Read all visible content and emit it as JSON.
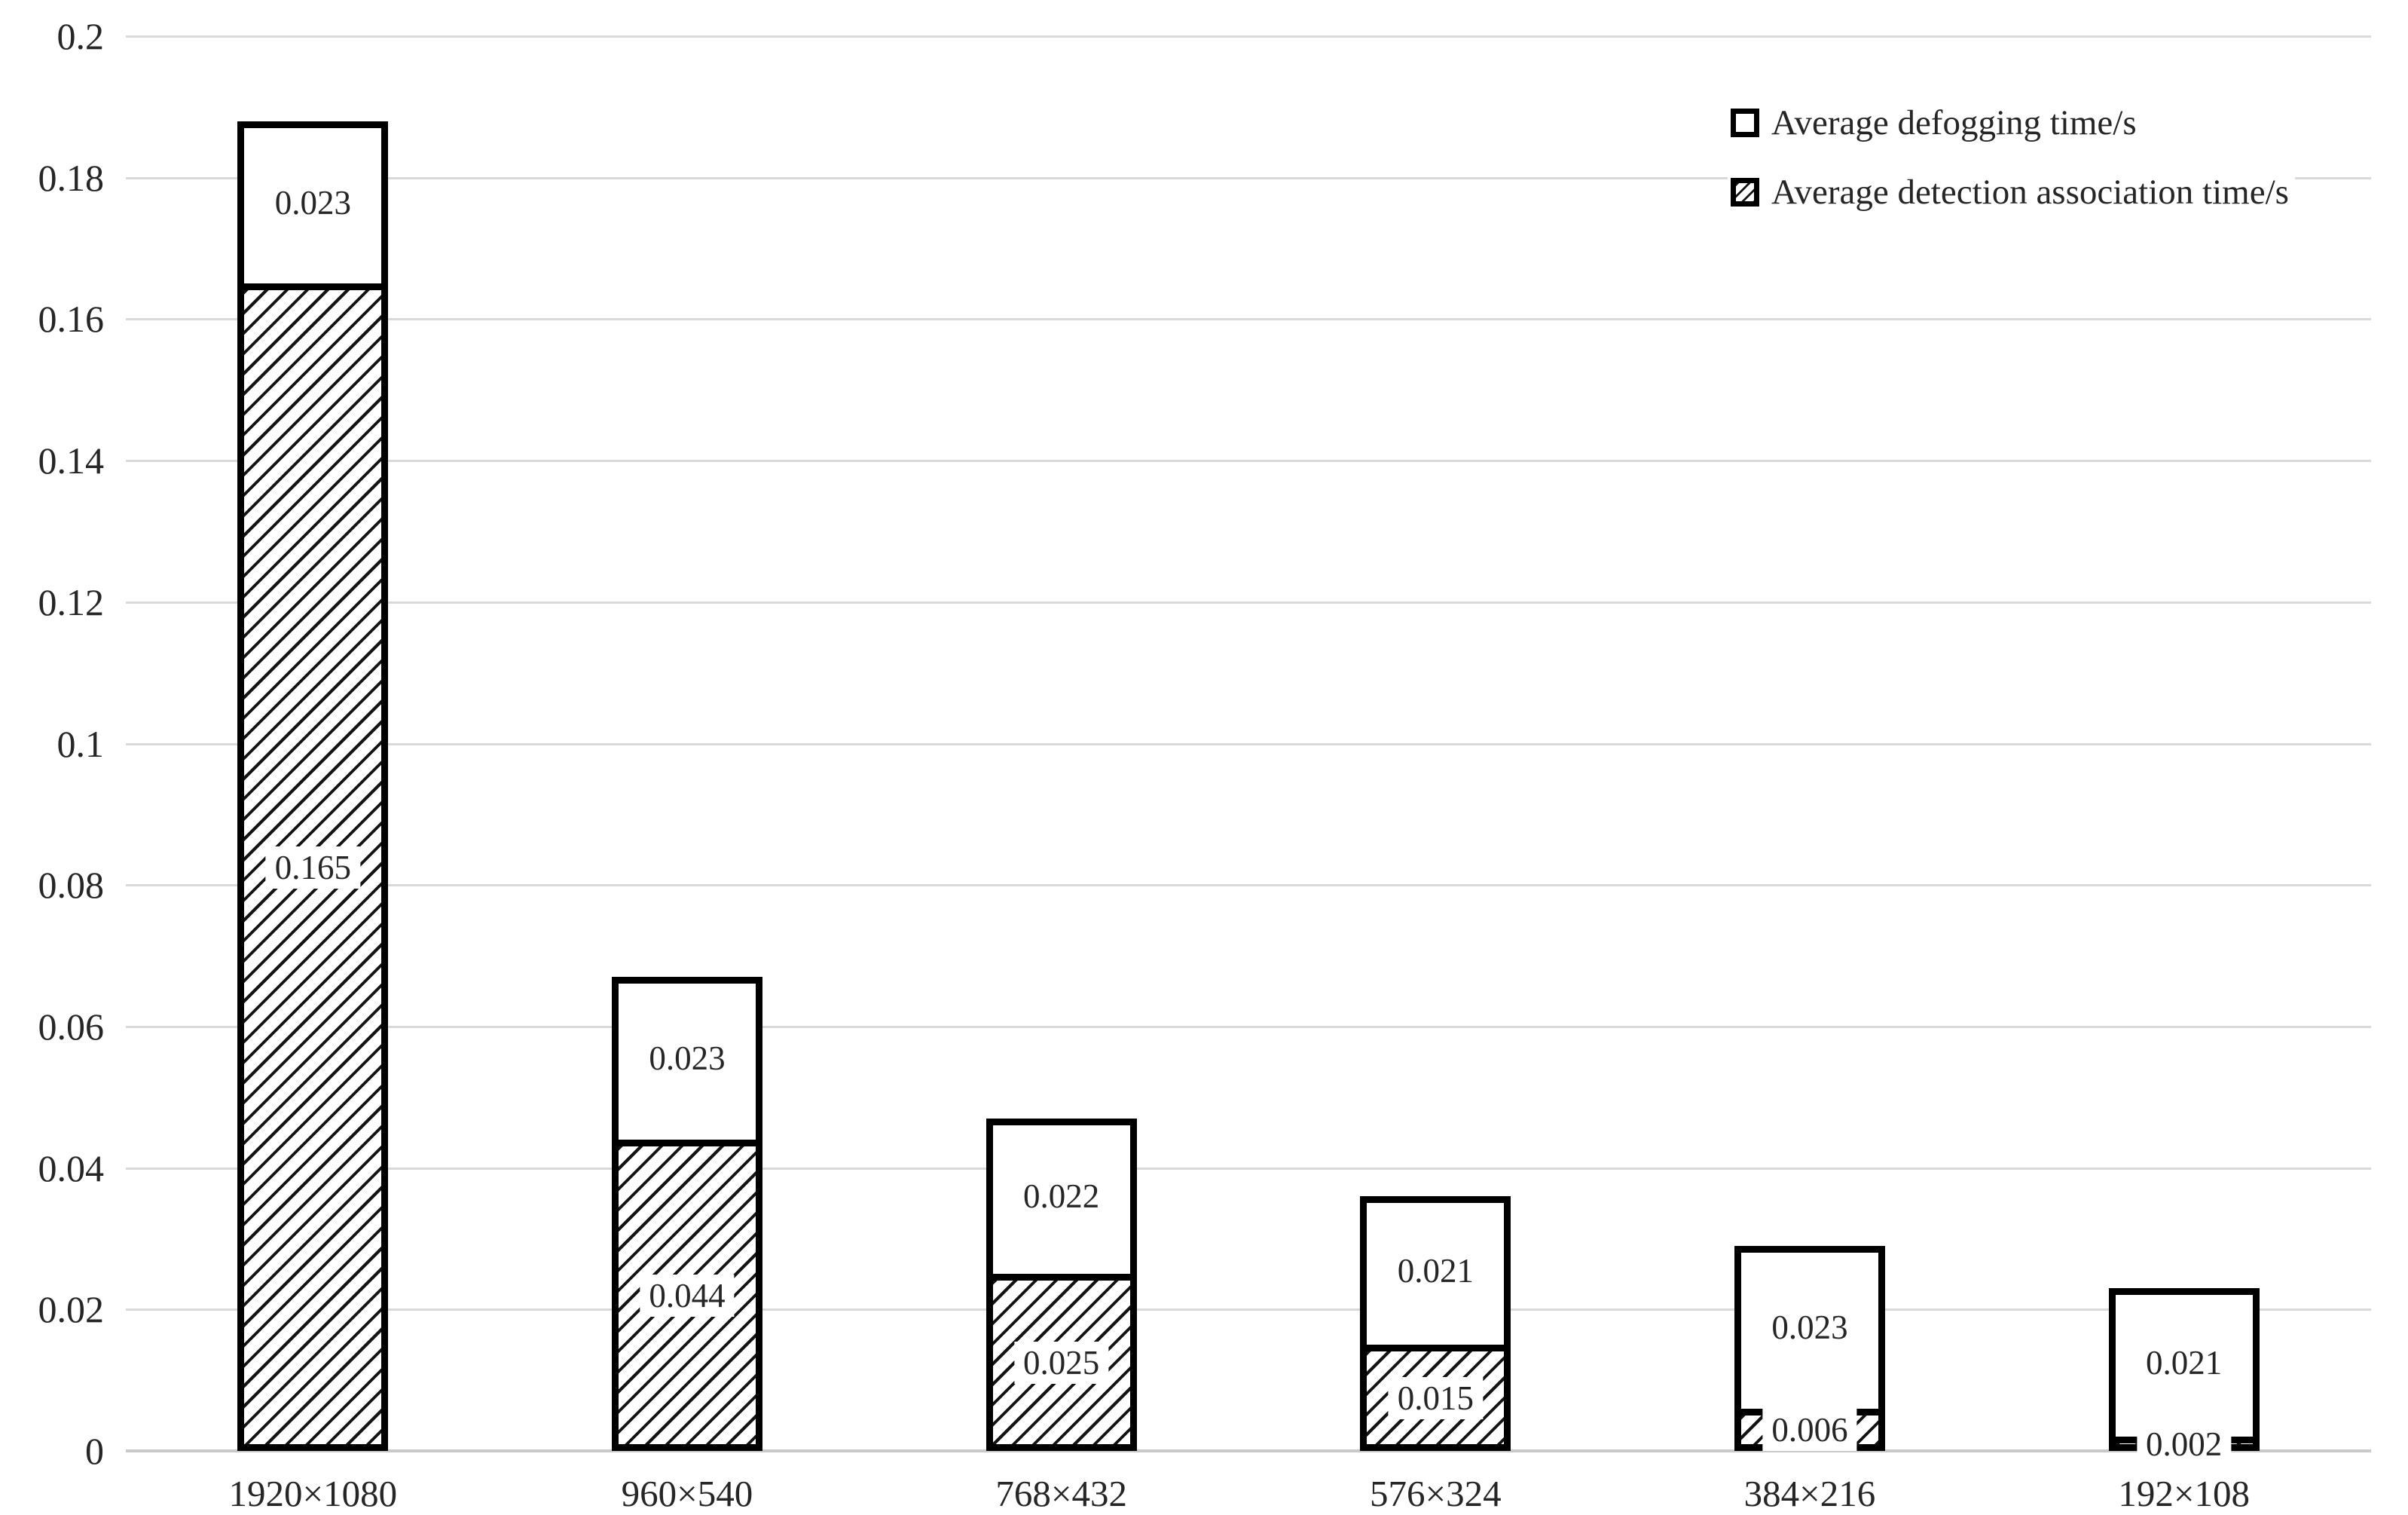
{
  "colors": {
    "background": "#ffffff",
    "gridline": "#d9d9d9",
    "axis_line": "#c9c9c9",
    "text": "#262626",
    "bar_border": "#000000",
    "bar_fill_white": "#ffffff",
    "hatch_line": "#141414"
  },
  "chart_data": {
    "type": "bar",
    "stacked": true,
    "title": "",
    "xlabel": "",
    "ylabel": "",
    "ylim": [
      0,
      0.2
    ],
    "ytick_interval": 0.02,
    "yticks": [
      "0",
      "0.02",
      "0.04",
      "0.06",
      "0.08",
      "0.1",
      "0.12",
      "0.14",
      "0.16",
      "0.18",
      "0.2"
    ],
    "ytick_values": [
      0,
      0.02,
      0.04,
      0.06,
      0.08,
      0.1,
      0.12,
      0.14,
      0.16,
      0.18,
      0.2
    ],
    "categories": [
      "1920×1080",
      "960×540",
      "768×432",
      "576×324",
      "384×216",
      "192×108"
    ],
    "series": [
      {
        "name": "Average defogging time/s",
        "swatch": "white",
        "stack_position": "top",
        "values": [
          0.023,
          0.023,
          0.022,
          0.021,
          0.023,
          0.021
        ],
        "data_labels": [
          "0.023",
          "0.023",
          "0.022",
          "0.021",
          "0.023",
          "0.021"
        ]
      },
      {
        "name": "Average detection association time/s",
        "swatch": "hatched",
        "stack_position": "bottom",
        "values": [
          0.165,
          0.044,
          0.025,
          0.015,
          0.006,
          0.002
        ],
        "data_labels": [
          "0.165",
          "0.044",
          "0.025",
          "0.015",
          "0.006",
          "0.002"
        ]
      }
    ],
    "grid": "horizontal",
    "legend_position": "top-right",
    "legend": [
      {
        "label": "Average defogging time/s",
        "swatch": "white"
      },
      {
        "label": "Average detection association time/s",
        "swatch": "hatched"
      }
    ]
  }
}
